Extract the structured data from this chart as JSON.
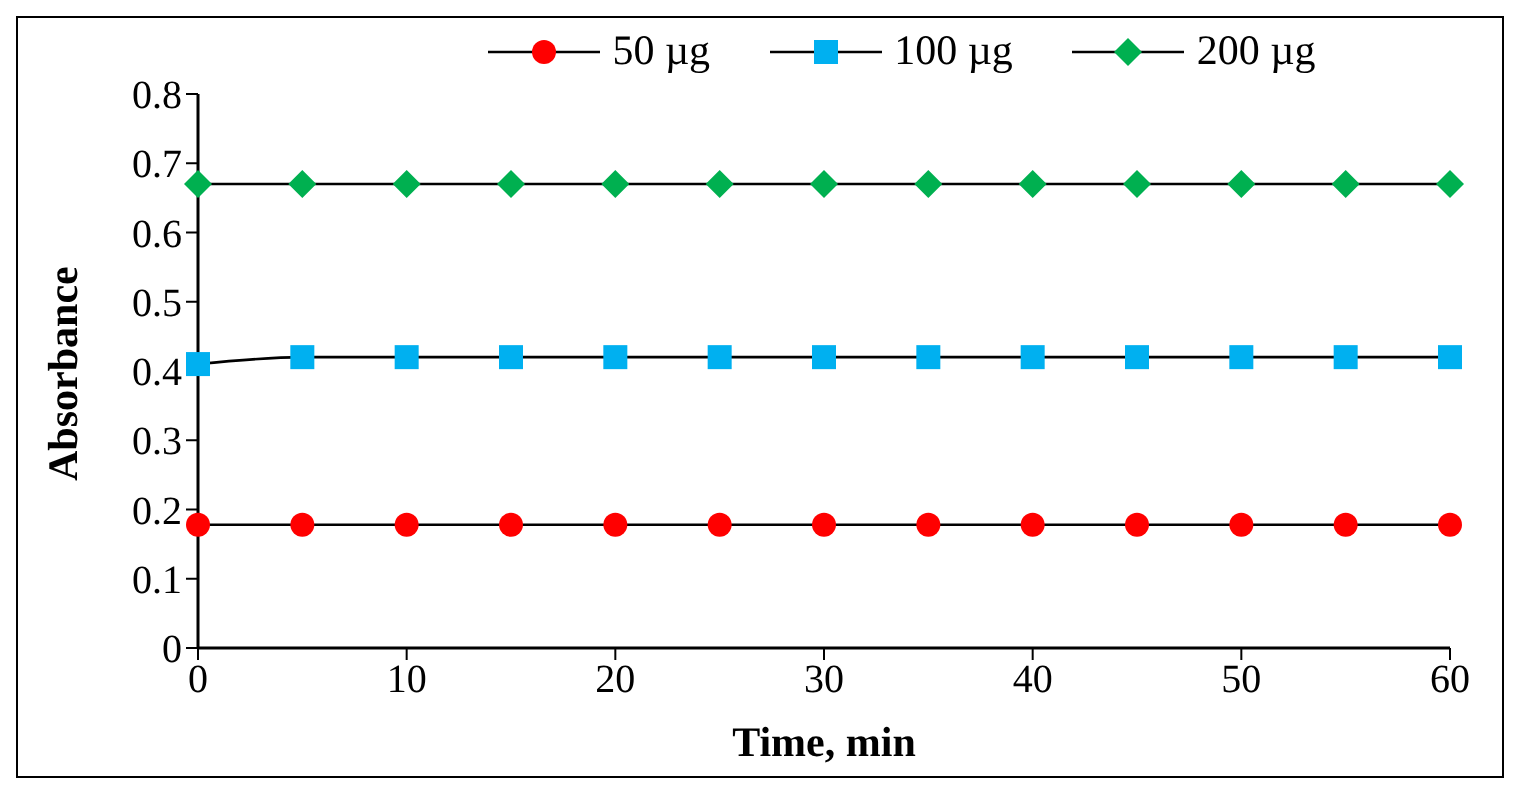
{
  "chart_data": {
    "type": "line",
    "xlabel": "Time, min",
    "ylabel": "Absorbance",
    "x": [
      0,
      5,
      10,
      15,
      20,
      25,
      30,
      35,
      40,
      45,
      50,
      55,
      60
    ],
    "series": [
      {
        "name": "50 µg",
        "color": "#ff0000",
        "marker": "circle",
        "values": [
          0.178,
          0.178,
          0.178,
          0.178,
          0.178,
          0.178,
          0.178,
          0.178,
          0.178,
          0.178,
          0.178,
          0.178,
          0.178
        ]
      },
      {
        "name": "100 µg",
        "color": "#00b0f0",
        "marker": "square",
        "values": [
          0.41,
          0.42,
          0.42,
          0.42,
          0.42,
          0.42,
          0.42,
          0.42,
          0.42,
          0.42,
          0.42,
          0.42,
          0.42
        ]
      },
      {
        "name": "200 µg",
        "color": "#00b050",
        "marker": "diamond",
        "values": [
          0.67,
          0.67,
          0.67,
          0.67,
          0.67,
          0.67,
          0.67,
          0.67,
          0.67,
          0.67,
          0.67,
          0.67,
          0.67
        ]
      }
    ],
    "xlim": [
      0,
      60
    ],
    "xticks": [
      0,
      10,
      20,
      30,
      40,
      50,
      60
    ],
    "ylim": [
      0,
      0.8
    ],
    "yticks": [
      0,
      0.1,
      0.2,
      0.3,
      0.4,
      0.5,
      0.6,
      0.7,
      0.8
    ],
    "grid": false,
    "legend": "top",
    "line_style": "solid"
  }
}
